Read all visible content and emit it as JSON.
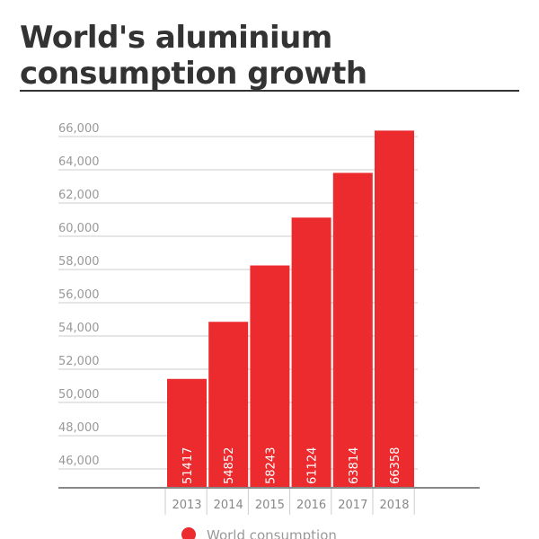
{
  "chart_data": {
    "type": "bar",
    "title": "World's aluminium consumption growth",
    "categories": [
      "2013",
      "2014",
      "2015",
      "2016",
      "2017",
      "2018"
    ],
    "series": [
      {
        "name": "World consumption",
        "values": [
          51417,
          54852,
          58243,
          61124,
          63814,
          66358
        ]
      }
    ],
    "data_labels": [
      "51417",
      "54852",
      "58243",
      "61124",
      "63814",
      "66358"
    ],
    "yticks": [
      46000,
      48000,
      50000,
      52000,
      54000,
      56000,
      58000,
      60000,
      62000,
      64000,
      66000
    ],
    "ytick_labels": [
      "46,000",
      "48,000",
      "50,000",
      "52,000",
      "54,000",
      "56,000",
      "58,000",
      "60,000",
      "62,000",
      "64,000",
      "66,000"
    ],
    "ylim": [
      44865,
      66900
    ],
    "grid": true,
    "legend": "bottom",
    "colors": {
      "bar": "#ec2b2e",
      "grid": "#dddddd",
      "text": "#999999",
      "title": "#333333"
    }
  }
}
